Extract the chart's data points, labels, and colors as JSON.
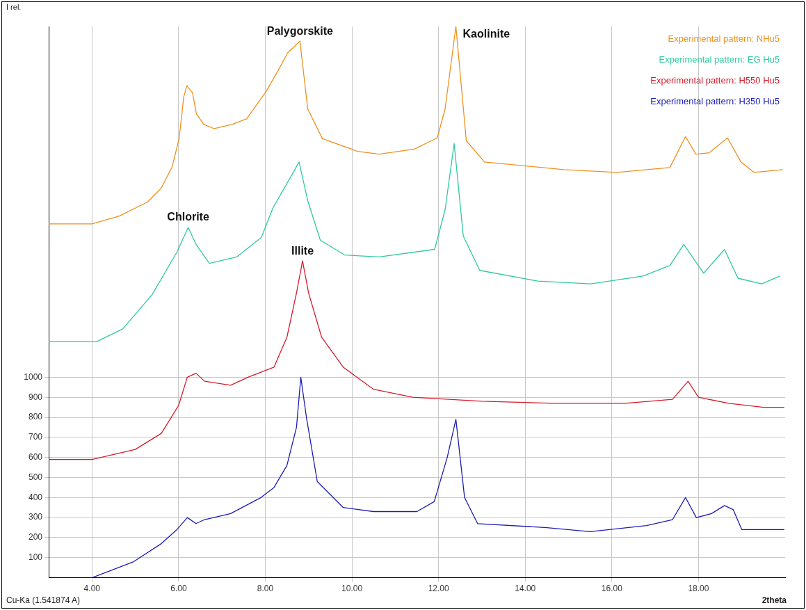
{
  "chart_data": {
    "type": "line",
    "ylabel": "I rel.",
    "xlabel": "2theta",
    "xlim": [
      3,
      20
    ],
    "ylim": [
      0,
      2750
    ],
    "xticks": [
      {
        "value": 4,
        "label": "4.00"
      },
      {
        "value": 6,
        "label": "6.00"
      },
      {
        "value": 8,
        "label": "8.00"
      },
      {
        "value": 10,
        "label": "10.00"
      },
      {
        "value": 12,
        "label": "12.00"
      },
      {
        "value": 14,
        "label": "14.00"
      },
      {
        "value": 16,
        "label": "16.00"
      },
      {
        "value": 18,
        "label": "18.00"
      }
    ],
    "yticks": [
      100,
      200,
      300,
      400,
      500,
      600,
      700,
      800,
      900,
      1000
    ],
    "grid": true,
    "legend": "top right",
    "marker": "none",
    "line_style": "solid",
    "tick_labels": "xy",
    "annotations": [
      "Cu-Ka (1.541874 A)",
      {
        "text": "Palygorskite",
        "x": 8.8,
        "y": 2676
      },
      {
        "text": "Kaolinite",
        "x": 12.4,
        "y": 2750
      },
      {
        "text": "Chlorite",
        "x": 6.22,
        "y": 1747
      },
      {
        "text": "Illite",
        "x": 8.86,
        "y": 1580
      }
    ],
    "series": [
      {
        "name": "Experimental pattern: NHu5",
        "color": "#f0901e",
        "x": [
          3.0,
          4.0,
          4.63,
          5.28,
          5.6,
          5.85,
          6.01,
          6.12,
          6.19,
          6.32,
          6.41,
          6.58,
          6.82,
          7.23,
          7.57,
          8.02,
          8.28,
          8.52,
          8.8,
          8.98,
          9.32,
          10.13,
          10.63,
          11.44,
          11.97,
          12.15,
          12.4,
          12.64,
          13.06,
          14.89,
          16.11,
          17.34,
          17.7,
          17.94,
          18.25,
          18.67,
          18.98,
          19.28,
          19.95
        ],
        "values": [
          1765,
          1765,
          1804,
          1874,
          1944,
          2050,
          2190,
          2401,
          2454,
          2419,
          2314,
          2261,
          2240,
          2261,
          2289,
          2426,
          2524,
          2619,
          2676,
          2338,
          2190,
          2127,
          2113,
          2138,
          2194,
          2338,
          2750,
          2180,
          2074,
          2036,
          2022,
          2046,
          2201,
          2113,
          2120,
          2194,
          2074,
          2022,
          2036
        ]
      },
      {
        "name": "Experimental pattern: EG Hu5",
        "color": "#2ec9a0",
        "x": [
          3.0,
          4.11,
          4.71,
          5.39,
          5.96,
          6.22,
          6.41,
          6.71,
          7.34,
          7.91,
          8.18,
          8.47,
          8.78,
          8.98,
          9.27,
          9.83,
          10.63,
          11.91,
          12.15,
          12.36,
          12.57,
          12.95,
          14.29,
          15.51,
          16.72,
          17.34,
          17.66,
          18.12,
          18.6,
          18.91,
          19.46,
          19.88
        ],
        "values": [
          1178,
          1178,
          1241,
          1413,
          1624,
          1747,
          1660,
          1568,
          1600,
          1698,
          1846,
          1955,
          2074,
          1881,
          1684,
          1610,
          1600,
          1638,
          1835,
          2166,
          1705,
          1533,
          1480,
          1466,
          1505,
          1558,
          1663,
          1519,
          1638,
          1494,
          1466,
          1505
        ]
      },
      {
        "name": "Experimental pattern: H550 Hu5",
        "color": "#d41c2c",
        "x": [
          3.0,
          4.0,
          5.0,
          5.6,
          6.0,
          6.2,
          6.4,
          6.6,
          7.2,
          7.6,
          8.2,
          8.5,
          8.72,
          8.86,
          9.0,
          9.3,
          9.8,
          10.5,
          11.4,
          13.0,
          14.7,
          16.3,
          17.4,
          17.76,
          18.0,
          18.7,
          19.5,
          19.98
        ],
        "values": [
          590,
          590,
          640,
          720,
          860,
          1000,
          1020,
          980,
          960,
          1000,
          1050,
          1200,
          1420,
          1580,
          1420,
          1200,
          1050,
          940,
          900,
          880,
          870,
          870,
          890,
          980,
          900,
          870,
          850,
          850
        ]
      },
      {
        "name": "Experimental pattern: H350 Hu5",
        "color": "#1c1cb4",
        "x": [
          4.0,
          4.96,
          5.6,
          5.96,
          6.2,
          6.4,
          6.6,
          7.2,
          7.9,
          8.2,
          8.5,
          8.72,
          8.82,
          8.95,
          9.2,
          9.8,
          10.5,
          11.5,
          11.9,
          12.2,
          12.4,
          12.6,
          12.9,
          14.5,
          15.5,
          16.8,
          17.4,
          17.7,
          17.95,
          18.3,
          18.6,
          18.8,
          19.0,
          19.5,
          19.98
        ],
        "values": [
          0,
          80,
          170,
          240,
          300,
          270,
          290,
          320,
          400,
          450,
          560,
          750,
          1000,
          800,
          480,
          350,
          330,
          330,
          380,
          600,
          790,
          400,
          270,
          250,
          230,
          260,
          290,
          400,
          300,
          320,
          360,
          340,
          240,
          240,
          240
        ]
      }
    ]
  }
}
